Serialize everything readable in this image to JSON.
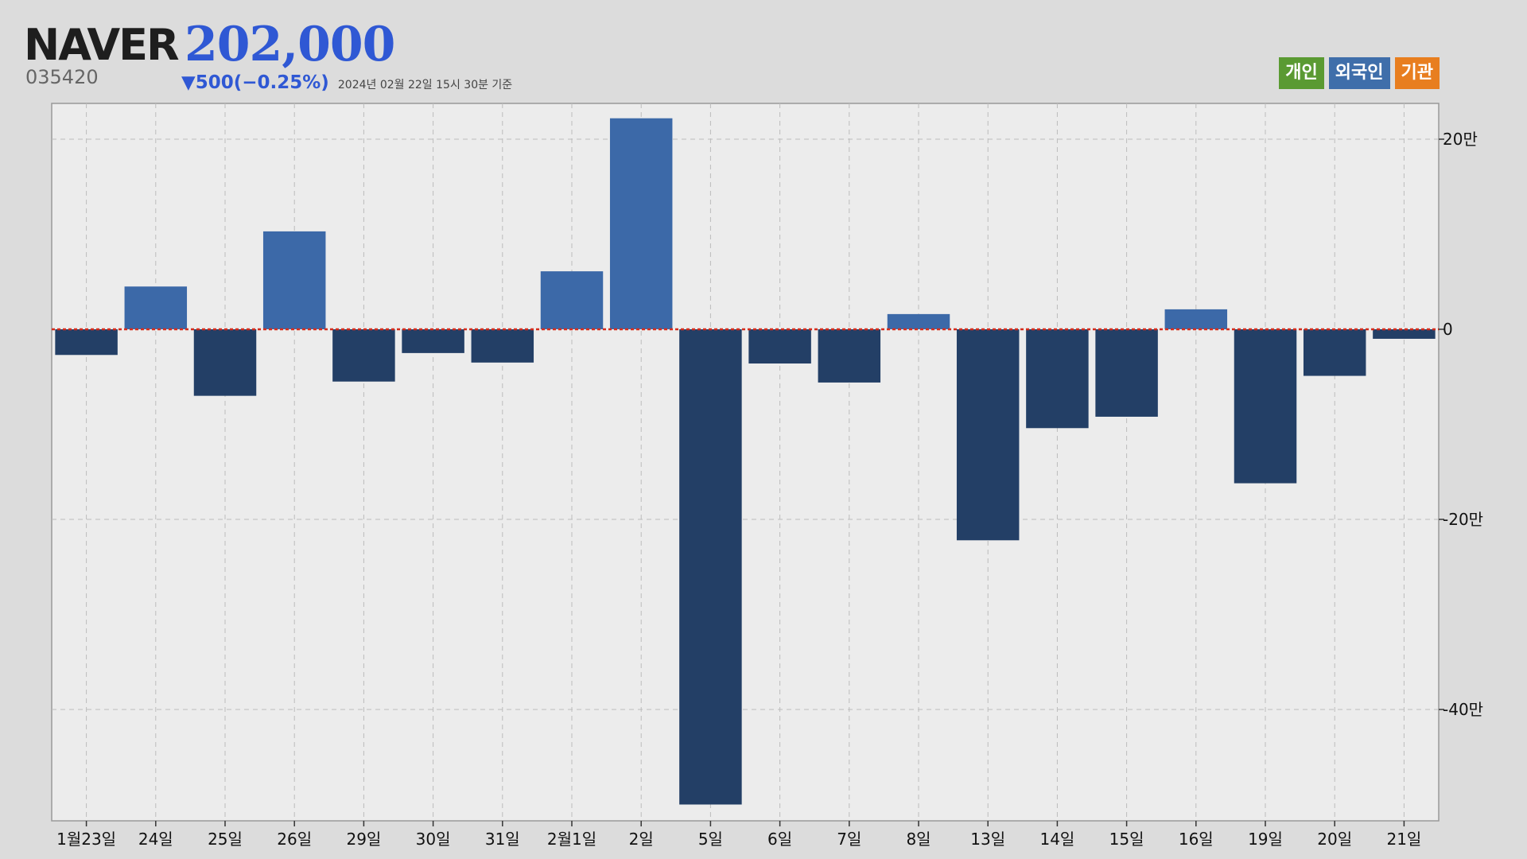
{
  "header": {
    "name": "NAVER",
    "price": "202,000",
    "code": "035420",
    "change": "▼500(−0.25%)",
    "timestamp": "2024년 02월 22일 15시 30분 기준"
  },
  "legend": [
    {
      "label": "개인",
      "color": "#5a9a32"
    },
    {
      "label": "외국인",
      "color": "#3f6eaa"
    },
    {
      "label": "기관",
      "color": "#e87e1f"
    }
  ],
  "colors": {
    "positive": "#3c69a8",
    "negative": "#233f66",
    "zero_line": "#d62c1c",
    "grid": "#bcbcbc",
    "plot_bg": "#ececec"
  },
  "chart_data": {
    "type": "bar",
    "categories": [
      "1월23일",
      "24일",
      "25일",
      "26일",
      "29일",
      "30일",
      "31일",
      "2월1일",
      "2일",
      "5일",
      "6일",
      "7일",
      "8일",
      "13일",
      "14일",
      "15일",
      "16일",
      "19일",
      "20일",
      "21일"
    ],
    "values": [
      -27000,
      45000,
      -70000,
      103000,
      -55000,
      -25000,
      -35000,
      61000,
      222000,
      -500000,
      -36000,
      -56000,
      16000,
      -222000,
      -104000,
      -92000,
      21000,
      -162000,
      -49000,
      -10000
    ],
    "ylim": [
      -500000,
      230000
    ],
    "yticks": [
      {
        "value": 200000,
        "label": "20만"
      },
      {
        "value": 0,
        "label": "0"
      },
      {
        "value": -200000,
        "label": "-20만"
      },
      {
        "value": -400000,
        "label": "-40만"
      }
    ],
    "grid": true
  }
}
